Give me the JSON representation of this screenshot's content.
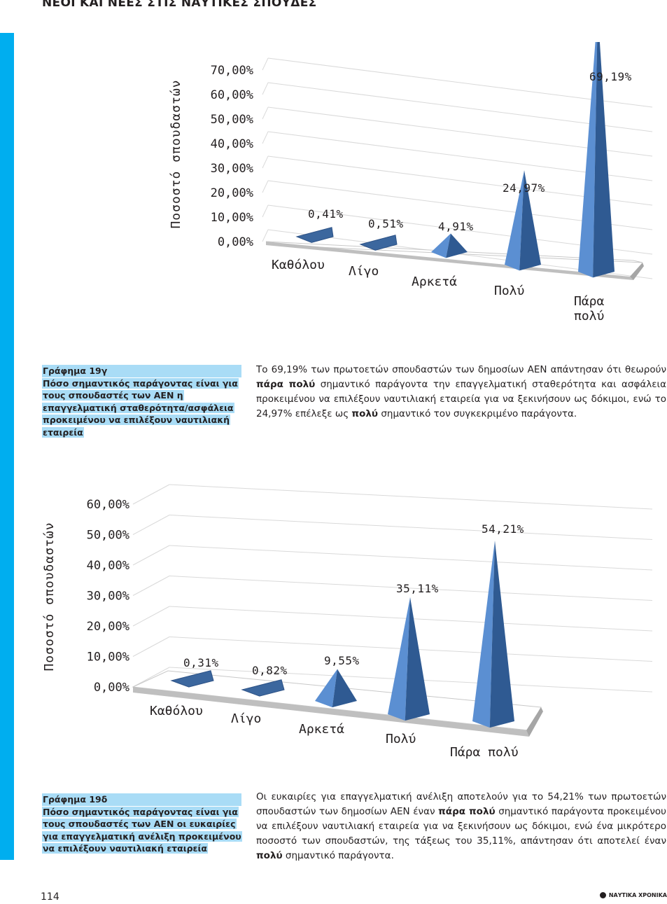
{
  "header": {
    "title": "ΝΕΟΙ ΚΑΙ ΝΕΕΣ ΣΤΙΣ ΝΑΥΤΙΚΕΣ ΣΠΟΥΔΕΣ"
  },
  "chart_data": [
    {
      "type": "bar",
      "style": "3d-pyramid",
      "categories": [
        "Καθόλου",
        "Λίγο",
        "Αρκετά",
        "Πολύ",
        "Πάρα πολύ"
      ],
      "category_labels": [
        [
          "Καθόλου"
        ],
        [
          "Λίγο"
        ],
        [
          "Αρκετά"
        ],
        [
          "Πολύ"
        ],
        [
          "Πάρα",
          "πολύ"
        ]
      ],
      "values": [
        0.41,
        0.51,
        4.91,
        24.97,
        69.19
      ],
      "data_labels": [
        "0,41%",
        "0,51%",
        "4,91%",
        "24,97%",
        "69,19%"
      ],
      "ylabel": "Ποσοστό σπουδαστών",
      "yticks": [
        "0,00%",
        "10,00%",
        "20,00%",
        "30,00%",
        "40,00%",
        "50,00%",
        "60,00%",
        "70,00%"
      ],
      "ylim": [
        0,
        70
      ],
      "grid": true,
      "color": "#4f81bd"
    },
    {
      "type": "bar",
      "style": "3d-pyramid",
      "categories": [
        "Καθόλου",
        "Λίγο",
        "Αρκετά",
        "Πολύ",
        "Πάρα πολύ"
      ],
      "category_labels": [
        [
          "Καθόλου"
        ],
        [
          "Λίγο"
        ],
        [
          "Αρκετά"
        ],
        [
          "Πολύ"
        ],
        [
          "Πάρα πολύ"
        ]
      ],
      "values": [
        0.31,
        0.82,
        9.55,
        35.11,
        54.21
      ],
      "data_labels": [
        "0,31%",
        "0,82%",
        "9,55%",
        "35,11%",
        "54,21%"
      ],
      "ylabel": "Ποσοστό σπουδαστών",
      "yticks": [
        "0,00%",
        "10,00%",
        "20,00%",
        "30,00%",
        "40,00%",
        "50,00%",
        "60,00%"
      ],
      "ylim": [
        0,
        60
      ],
      "grid": true,
      "color": "#4f81bd"
    }
  ],
  "caption1": {
    "title": "Γράφημα 19γ",
    "text": "Πόσο σημαντικός παράγοντας είναι για τους σπουδαστές των ΑΕΝ η επαγγελματική σταθερότητα/ασφάλεια προκειμένου να επιλέξουν ναυτιλιακή εταιρεία"
  },
  "body1": {
    "p1": "Το 69,19% των πρωτοετών σπουδαστών των δημοσίων ΑΕΝ απάντησαν ότι θεωρούν ",
    "b1": "πάρα πολύ",
    "p2": " σημαντικό παράγοντα την επαγγελματική σταθερότητα και ασφάλεια προκειμένου να επιλέξουν ναυτιλιακή εταιρεία για να ξεκινήσουν ως δόκιμοι, ενώ το 24,97% επέλεξε ως ",
    "b2": "πολύ",
    "p3": " σημαντικό τον συγκεκριμένο παράγοντα."
  },
  "caption2": {
    "title": "Γράφημα 19δ",
    "text": "Πόσο σημαντικός παράγοντας είναι για τους σπουδαστές των ΑΕΝ οι ευκαιρίες για επαγγελματική ανέλιξη προκειμένου να επιλέξουν ναυτιλιακή εταιρεία"
  },
  "body2": {
    "p1": "Οι ευκαιρίες για επαγγελματική ανέλιξη αποτελούν για το 54,21% των πρωτοετών σπουδαστών των δημοσίων ΑΕΝ έναν ",
    "b1": "πάρα πολύ",
    "p2": " σημαντικό παράγοντα προκειμένου να επιλέξουν ναυτιλιακή εταιρεία για να ξεκινήσουν ως δόκιμοι, ενώ ένα μικρότερο ποσοστό των σπουδαστών, της τάξεως του 35,11%, απάντησαν ότι αποτελεί έναν ",
    "b2": "πολύ",
    "p3": " σημαντικό παράγοντα."
  },
  "footer": {
    "page_number": "114",
    "brand": "ΝΑΥΤΙΚΑ ΧΡΟΝΙΚΑ"
  }
}
